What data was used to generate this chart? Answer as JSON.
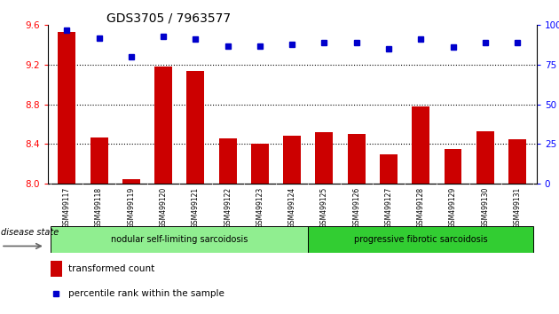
{
  "title": "GDS3705 / 7963577",
  "samples": [
    "GSM499117",
    "GSM499118",
    "GSM499119",
    "GSM499120",
    "GSM499121",
    "GSM499122",
    "GSM499123",
    "GSM499124",
    "GSM499125",
    "GSM499126",
    "GSM499127",
    "GSM499128",
    "GSM499129",
    "GSM499130",
    "GSM499131"
  ],
  "bar_values": [
    9.53,
    8.47,
    8.05,
    9.18,
    9.14,
    8.46,
    8.4,
    8.48,
    8.52,
    8.5,
    8.3,
    8.78,
    8.35,
    8.53,
    8.45
  ],
  "dot_values": [
    97,
    92,
    80,
    93,
    91,
    87,
    87,
    88,
    89,
    89,
    85,
    91,
    86,
    89,
    89
  ],
  "bar_color": "#cc0000",
  "dot_color": "#0000cc",
  "ylim_left": [
    8.0,
    9.6
  ],
  "ylim_right": [
    0,
    100
  ],
  "yticks_left": [
    8.0,
    8.4,
    8.8,
    9.2,
    9.6
  ],
  "yticks_right": [
    0,
    25,
    50,
    75,
    100
  ],
  "grid_values": [
    8.4,
    8.8,
    9.2
  ],
  "group1_label": "nodular self-limiting sarcoidosis",
  "group2_label": "progressive fibrotic sarcoidosis",
  "group1_count": 8,
  "disease_state_label": "disease state",
  "legend_bar_label": "transformed count",
  "legend_dot_label": "percentile rank within the sample",
  "bg_color_ticks": "#c8c8c8",
  "bg_color_group1": "#90EE90",
  "bg_color_group2": "#32CD32",
  "title_fontsize": 10,
  "tick_fontsize": 7.5,
  "label_fontsize": 7.5
}
